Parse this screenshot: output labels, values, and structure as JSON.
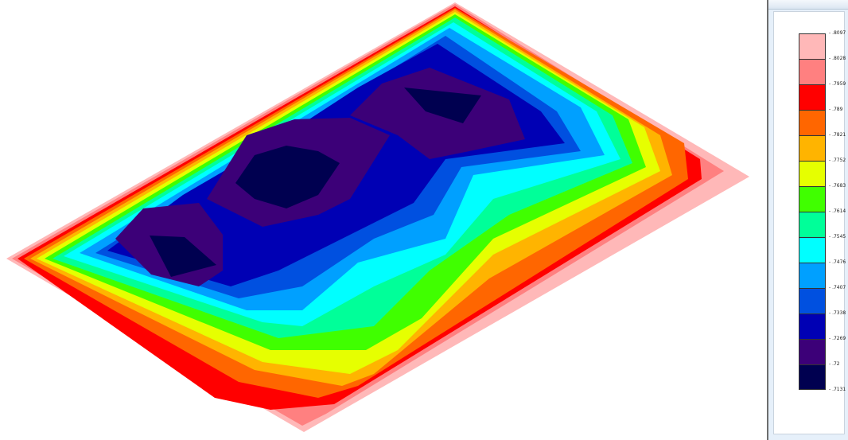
{
  "legend_header": "",
  "legend": {
    "labels": [
      ".8097",
      ".8028",
      ".7959",
      ".789",
      ".7821",
      ".7752",
      ".7683",
      ".7614",
      ".7545",
      ".7476",
      ".7407",
      ".7338",
      ".7269",
      ".72",
      ".7131"
    ],
    "colors": [
      "#ffb8b8",
      "#ff8080",
      "#ff0000",
      "#ff6600",
      "#ffb400",
      "#e6ff00",
      "#40ff00",
      "#00ff99",
      "#00ffff",
      "#00a0ff",
      "#0050e0",
      "#0000b4",
      "#3c0078",
      "#000050"
    ]
  },
  "chart_data": {
    "type": "heatmap",
    "title": "",
    "legend_position": "right",
    "contour_levels": [
      -0.8097,
      -0.8028,
      -0.7959,
      -0.789,
      -0.7821,
      -0.7752,
      -0.7683,
      -0.7614,
      -0.7545,
      -0.7476,
      -0.7407,
      -0.7338,
      -0.7269,
      -0.72,
      -0.7131
    ],
    "band_colors": [
      "#ffb8b8",
      "#ff8080",
      "#ff0000",
      "#ff6600",
      "#ffb400",
      "#e6ff00",
      "#40ff00",
      "#00ff99",
      "#00ffff",
      "#00a0ff",
      "#0050e0",
      "#0000b4",
      "#3c0078",
      "#000050"
    ]
  }
}
